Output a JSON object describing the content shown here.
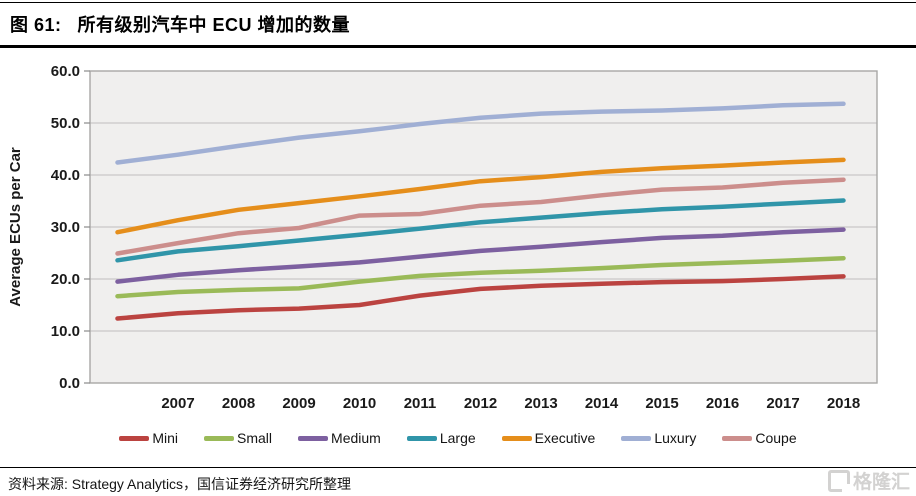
{
  "header": {
    "title_prefix": "图 61:",
    "title_text": "所有级别汽车中 ECU 增加的数量"
  },
  "chart_data": {
    "type": "line",
    "title": "",
    "xlabel": "",
    "ylabel": "Average ECUs per Car",
    "ylim": [
      0,
      60
    ],
    "ytick_step": 10,
    "ytick_labels": [
      "0.0",
      "10.0",
      "20.0",
      "30.0",
      "40.0",
      "50.0",
      "60.0"
    ],
    "x": [
      2006,
      2007,
      2008,
      2009,
      2010,
      2011,
      2012,
      2013,
      2014,
      2015,
      2016,
      2017,
      2018
    ],
    "xtick_labels": [
      "2007",
      "2008",
      "2009",
      "2010",
      "2011",
      "2012",
      "2013",
      "2014",
      "2015",
      "2016",
      "2017",
      "2018"
    ],
    "grid": true,
    "legend_position": "bottom",
    "plot_bg": "#f0efee",
    "grid_color": "#c9c8c7",
    "border_color": "#a8a7a5",
    "tick_text_color": "#1a1a1a",
    "series": [
      {
        "name": "Mini",
        "color": "#bb4340",
        "values": [
          12.4,
          13.4,
          14.0,
          14.3,
          15.0,
          16.8,
          18.1,
          18.7,
          19.1,
          19.4,
          19.6,
          20.0,
          20.5
        ]
      },
      {
        "name": "Small",
        "color": "#9aba58",
        "values": [
          16.7,
          17.5,
          17.9,
          18.2,
          19.5,
          20.6,
          21.2,
          21.6,
          22.1,
          22.7,
          23.1,
          23.5,
          24.0
        ]
      },
      {
        "name": "Medium",
        "color": "#7d60a0",
        "values": [
          19.5,
          20.8,
          21.7,
          22.4,
          23.2,
          24.3,
          25.4,
          26.2,
          27.1,
          27.9,
          28.3,
          29.0,
          29.5
        ]
      },
      {
        "name": "Large",
        "color": "#3095a9",
        "values": [
          23.6,
          25.3,
          26.3,
          27.4,
          28.5,
          29.7,
          30.9,
          31.8,
          32.7,
          33.4,
          33.9,
          34.5,
          35.1
        ]
      },
      {
        "name": "Executive",
        "color": "#e58e1b",
        "values": [
          29.0,
          31.3,
          33.3,
          34.6,
          35.9,
          37.3,
          38.8,
          39.6,
          40.6,
          41.3,
          41.8,
          42.4,
          42.9
        ]
      },
      {
        "name": "Luxury",
        "color": "#a0afd4",
        "values": [
          42.4,
          43.9,
          45.6,
          47.2,
          48.4,
          49.8,
          51.0,
          51.8,
          52.2,
          52.4,
          52.8,
          53.4,
          53.7
        ]
      },
      {
        "name": "Coupe",
        "color": "#cc8e8c",
        "values": [
          24.9,
          26.9,
          28.8,
          29.8,
          32.2,
          32.5,
          34.1,
          34.8,
          36.1,
          37.2,
          37.6,
          38.5,
          39.1
        ]
      }
    ]
  },
  "footer": {
    "source": "资料来源: Strategy Analytics，国信证券经济研究所整理",
    "watermark": "格隆汇"
  }
}
